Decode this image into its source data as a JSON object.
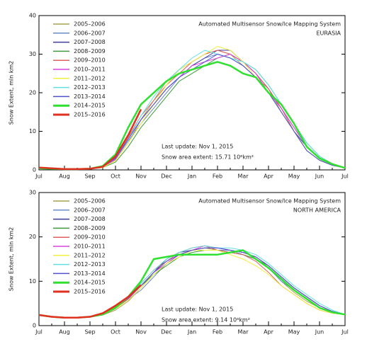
{
  "chart_data": [
    {
      "type": "line",
      "title": "Automated  Multisensor Snow/Ice Mapping System",
      "subtitle": "EURASIA",
      "y_label": "Snow Extent, mln km2",
      "annotations": [
        "Last update: Nov  1, 2015",
        "Snow area extent: 15.71 10⁶km²"
      ],
      "categories": [
        "Jul",
        null,
        "Aug",
        null,
        "Sep",
        null,
        "Oct",
        null,
        "Nov",
        null,
        "Dec",
        null,
        "Jan",
        null,
        "Feb",
        null,
        "Mar",
        null,
        "Apr",
        null,
        "May",
        null,
        "Jun",
        null,
        "Jul"
      ],
      "ylim": [
        0,
        40
      ],
      "yticks": [
        0,
        10,
        20,
        30,
        40
      ],
      "series": [
        {
          "name": "2005–2006",
          "color": "#a8a050",
          "line_width": 1,
          "values": [
            0.5,
            0.3,
            0.2,
            0.2,
            0.3,
            0.6,
            2.5,
            7,
            13,
            18,
            23,
            26,
            28,
            30,
            31,
            30,
            27,
            24,
            21,
            15,
            10,
            5,
            2.5,
            1.2,
            0.5
          ]
        },
        {
          "name": "2006–2007",
          "color": "#6a8ac8",
          "line_width": 1,
          "values": [
            0.5,
            0.3,
            0.2,
            0.2,
            0.3,
            0.7,
            2.8,
            7.5,
            12,
            16,
            20,
            24,
            27,
            29,
            30,
            29,
            27,
            24,
            20,
            16,
            11,
            6,
            3,
            1.5,
            0.5
          ]
        },
        {
          "name": "2007–2008",
          "color": "#3c3c9c",
          "line_width": 1,
          "values": [
            0.5,
            0.3,
            0.2,
            0.2,
            0.3,
            0.9,
            3.2,
            8,
            13,
            17,
            21,
            24,
            27,
            29,
            31,
            31,
            28,
            25,
            21,
            16,
            10,
            6,
            3,
            1.4,
            0.5
          ]
        },
        {
          "name": "2008–2009",
          "color": "#3c9c3c",
          "line_width": 1,
          "values": [
            0.5,
            0.3,
            0.2,
            0.2,
            0.3,
            0.6,
            2,
            6,
            11,
            15,
            19,
            23,
            25,
            27,
            29,
            30,
            28,
            26,
            22,
            17,
            12,
            7,
            3.5,
            1.6,
            0.5
          ]
        },
        {
          "name": "2009–2010",
          "color": "#e06060",
          "line_width": 1,
          "values": [
            0.5,
            0.3,
            0.2,
            0.2,
            0.3,
            0.8,
            3,
            8.5,
            14,
            18,
            22,
            25,
            28,
            30,
            31,
            30,
            28,
            25,
            21,
            16,
            10,
            5,
            2.5,
            1.2,
            0.5
          ]
        },
        {
          "name": "2010–2011",
          "color": "#e040e0",
          "line_width": 1,
          "values": [
            0.5,
            0.3,
            0.2,
            0.2,
            0.3,
            0.7,
            2.7,
            8,
            13,
            17,
            21,
            24,
            27,
            28,
            29,
            30,
            28,
            25,
            20,
            16,
            11,
            6,
            3,
            1.5,
            0.5
          ]
        },
        {
          "name": "2011–2012",
          "color": "#f0f040",
          "line_width": 1,
          "values": [
            0.5,
            0.3,
            0.2,
            0.2,
            0.3,
            0.6,
            2.4,
            7,
            12,
            17,
            22,
            26,
            28,
            30,
            32,
            31,
            28,
            24,
            20,
            15,
            10,
            5,
            2.5,
            1.2,
            0.5
          ]
        },
        {
          "name": "2012–2013",
          "color": "#60e0e0",
          "line_width": 1,
          "values": [
            0.5,
            0.3,
            0.2,
            0.2,
            0.3,
            0.8,
            3,
            8,
            14,
            19,
            23,
            26,
            29,
            31,
            30,
            29,
            28,
            26,
            22,
            17,
            12,
            7,
            3.5,
            1.5,
            0.5
          ]
        },
        {
          "name": "2013–2014",
          "color": "#5050d0",
          "line_width": 1,
          "values": [
            0.5,
            0.3,
            0.2,
            0.2,
            0.3,
            0.8,
            3,
            8,
            13,
            17,
            21,
            24,
            26,
            28,
            30,
            29,
            27,
            24,
            20,
            15,
            10,
            5,
            2.5,
            1.2,
            0.5
          ]
        },
        {
          "name": "2014–2015",
          "color": "#30e030",
          "line_width": 2.5,
          "values": [
            0.4,
            0.3,
            0.2,
            0.2,
            0.3,
            1,
            4,
            11,
            17,
            20,
            23,
            25,
            26,
            27,
            28,
            27,
            25,
            24,
            20,
            17,
            12,
            6,
            3,
            1.5,
            0.5
          ]
        },
        {
          "name": "2015–2016",
          "color": "#e03020",
          "line_width": 2.5,
          "values": [
            0.6,
            0.4,
            0.2,
            0.2,
            0.3,
            0.8,
            3.5,
            9,
            15.71,
            null,
            null,
            null,
            null,
            null,
            null,
            null,
            null,
            null,
            null,
            null,
            null,
            null,
            null,
            null,
            null
          ]
        }
      ]
    },
    {
      "type": "line",
      "title": "Automated  Multisensor Snow/Ice Mapping System",
      "subtitle": "NORTH AMERICA",
      "y_label": "Snow Extent, mln km2",
      "annotations": [
        "Last update: Nov  1, 2015",
        "Snow area extent:  9.14 10⁶km²"
      ],
      "categories": [
        "Jul",
        null,
        "Aug",
        null,
        "Sep",
        null,
        "Oct",
        null,
        "Nov",
        null,
        "Dec",
        null,
        "Jan",
        null,
        "Feb",
        null,
        "Mar",
        null,
        "Apr",
        null,
        "May",
        null,
        "Jun",
        null,
        "Jul"
      ],
      "ylim": [
        0,
        30
      ],
      "yticks": [
        0,
        10,
        20,
        30
      ],
      "series": [
        {
          "name": "2005–2006",
          "color": "#a8a050",
          "line_width": 1,
          "values": [
            2.5,
            2,
            1.8,
            1.8,
            2,
            2.4,
            3.5,
            5.5,
            8.5,
            12,
            14,
            16,
            17,
            17.5,
            17,
            16.5,
            16,
            15,
            13,
            10,
            7.5,
            5.5,
            4,
            3,
            2.5
          ]
        },
        {
          "name": "2006–2007",
          "color": "#6a8ac8",
          "line_width": 1,
          "values": [
            2.5,
            2,
            1.8,
            1.8,
            2,
            2.5,
            4,
            6,
            8,
            11,
            14,
            16,
            17,
            17,
            17,
            17,
            16,
            15,
            13,
            10,
            8,
            6,
            4,
            3,
            2.5
          ]
        },
        {
          "name": "2007–2008",
          "color": "#3c3c9c",
          "line_width": 1,
          "values": [
            2.5,
            2,
            1.8,
            1.8,
            2,
            2.5,
            3.8,
            6,
            9,
            12,
            15,
            16.5,
            17,
            17.5,
            17.5,
            17,
            16.5,
            15.5,
            13.5,
            11,
            8.5,
            6.5,
            4.5,
            3.2,
            2.5
          ]
        },
        {
          "name": "2008–2009",
          "color": "#3c9c3c",
          "line_width": 1,
          "values": [
            2.5,
            2,
            1.8,
            1.8,
            2,
            2.6,
            4,
            6,
            9,
            11.5,
            13.5,
            15.5,
            16.5,
            17,
            17,
            16.5,
            16,
            15,
            13.5,
            11,
            8.5,
            6.5,
            4.5,
            3.2,
            2.5
          ]
        },
        {
          "name": "2009–2010",
          "color": "#e06060",
          "line_width": 1,
          "values": [
            2.5,
            2,
            1.8,
            1.8,
            2,
            2.5,
            4,
            6.2,
            9.5,
            12.5,
            14.5,
            16.5,
            17.5,
            18,
            17,
            16.5,
            16,
            14.5,
            12,
            9,
            7,
            5,
            3.5,
            2.8,
            2.5
          ]
        },
        {
          "name": "2010–2011",
          "color": "#e040e0",
          "line_width": 1,
          "values": [
            2.5,
            2,
            1.8,
            1.8,
            2,
            2.5,
            4,
            6,
            9,
            12,
            14,
            16,
            17,
            18,
            17.5,
            17,
            16.5,
            15.5,
            13.5,
            11,
            8.5,
            6.5,
            4.5,
            3.2,
            2.5
          ]
        },
        {
          "name": "2011–2012",
          "color": "#f0f040",
          "line_width": 1,
          "values": [
            2.5,
            2,
            1.8,
            1.8,
            2,
            2.5,
            3.8,
            5.8,
            8.5,
            11.5,
            14,
            15.5,
            17,
            17,
            17,
            16,
            15,
            13.5,
            11.5,
            9,
            7,
            5,
            3.5,
            2.8,
            2.5
          ]
        },
        {
          "name": "2012–2013",
          "color": "#60e0e0",
          "line_width": 1,
          "values": [
            2.5,
            2,
            1.8,
            1.8,
            2,
            2.6,
            4.2,
            6.5,
            9.5,
            12.5,
            15,
            16.5,
            17.5,
            18,
            17.5,
            17.5,
            17,
            16,
            14,
            11.5,
            9,
            7,
            5,
            3.5,
            2.5
          ]
        },
        {
          "name": "2013–2014",
          "color": "#5050d0",
          "line_width": 1,
          "values": [
            2.5,
            2,
            1.8,
            1.8,
            2,
            2.6,
            4.2,
            6.2,
            9,
            12,
            14.5,
            16,
            17,
            17.5,
            17.5,
            17,
            16.5,
            15.5,
            13.5,
            11,
            8.5,
            6.5,
            4.5,
            3.2,
            2.5
          ]
        },
        {
          "name": "2014–2015",
          "color": "#30e030",
          "line_width": 2.5,
          "values": [
            2.4,
            2,
            1.8,
            1.8,
            2,
            2.5,
            4,
            6.5,
            10,
            15,
            15.5,
            16,
            16,
            16,
            16,
            16.5,
            17,
            15,
            13,
            10.5,
            8,
            6,
            4,
            3,
            2.5
          ]
        },
        {
          "name": "2015–2016",
          "color": "#e03020",
          "line_width": 2.5,
          "values": [
            2.4,
            2,
            1.8,
            1.8,
            2,
            2.8,
            4.5,
            6.5,
            9.14,
            null,
            null,
            null,
            null,
            null,
            null,
            null,
            null,
            null,
            null,
            null,
            null,
            null,
            null,
            null,
            null
          ]
        }
      ]
    }
  ]
}
